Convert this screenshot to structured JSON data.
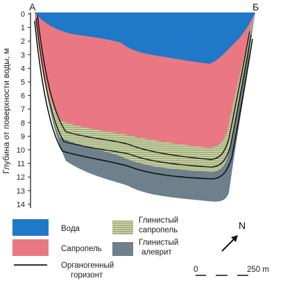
{
  "profile": {
    "corner_left": "А",
    "corner_right": "Б",
    "y_axis_label": "Глубина от поверхности воды, м",
    "y_ticks": [
      "0",
      "1",
      "2",
      "3",
      "4",
      "5",
      "6",
      "7",
      "8",
      "9",
      "10",
      "11",
      "12",
      "13",
      "14"
    ]
  },
  "layers": {
    "water": {
      "color": "#1f78c8"
    },
    "sapropel": {
      "color": "#e97883"
    },
    "clay_sapropel": {
      "color": "#c9d2a2"
    },
    "clay_silt": {
      "color": "#6c7f8b"
    },
    "organic_horizon": {
      "color": "#111111"
    }
  },
  "legend": {
    "water": "Вода",
    "sapropel": "Сапропель",
    "clay_sapropel_line1": "Глинистый",
    "clay_sapropel_line2": "сапропель",
    "clay_silt_line1": "Глинистый",
    "clay_silt_line2": "алеврит",
    "organic_line1": "Органогенный",
    "organic_line2": "горизонт"
  },
  "north": "N",
  "scale": {
    "start": "0",
    "end": "250 m"
  }
}
